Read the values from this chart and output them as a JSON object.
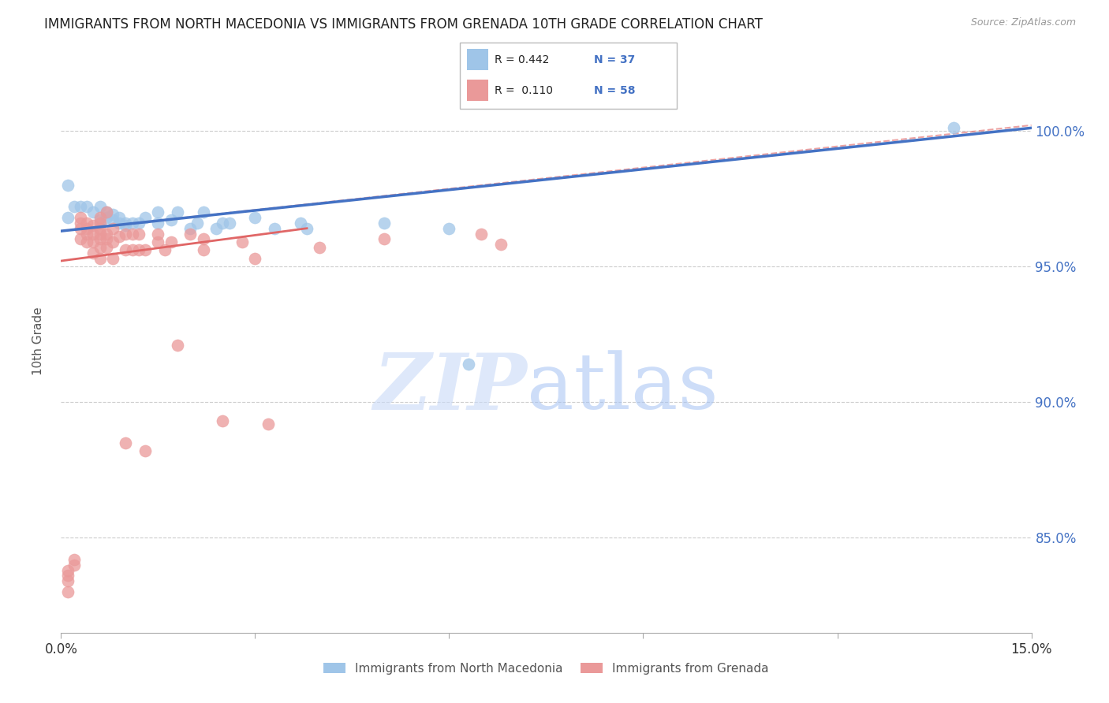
{
  "title": "IMMIGRANTS FROM NORTH MACEDONIA VS IMMIGRANTS FROM GRENADA 10TH GRADE CORRELATION CHART",
  "source": "Source: ZipAtlas.com",
  "ylabel": "10th Grade",
  "yaxis_labels": [
    "100.0%",
    "95.0%",
    "90.0%",
    "85.0%"
  ],
  "yaxis_values": [
    1.0,
    0.95,
    0.9,
    0.85
  ],
  "xmin": 0.0,
  "xmax": 0.15,
  "ymin": 0.815,
  "ymax": 1.03,
  "blue_color": "#9fc5e8",
  "pink_color": "#ea9999",
  "line_blue_color": "#4472c4",
  "line_pink_color": "#e06666",
  "dashed_color": "#e06666",
  "grid_color": "#cccccc",
  "blue_scatter_x": [
    0.001,
    0.002,
    0.001,
    0.003,
    0.004,
    0.005,
    0.006,
    0.006,
    0.007,
    0.007,
    0.008,
    0.008,
    0.009,
    0.009,
    0.01,
    0.01,
    0.011,
    0.012,
    0.013,
    0.015,
    0.015,
    0.017,
    0.018,
    0.02,
    0.021,
    0.022,
    0.024,
    0.025,
    0.026,
    0.03,
    0.033,
    0.037,
    0.038,
    0.05,
    0.06,
    0.063,
    0.138
  ],
  "blue_scatter_y": [
    0.98,
    0.972,
    0.968,
    0.972,
    0.972,
    0.97,
    0.972,
    0.967,
    0.97,
    0.968,
    0.969,
    0.967,
    0.966,
    0.968,
    0.966,
    0.965,
    0.966,
    0.966,
    0.968,
    0.966,
    0.97,
    0.967,
    0.97,
    0.964,
    0.966,
    0.97,
    0.964,
    0.966,
    0.966,
    0.968,
    0.964,
    0.966,
    0.964,
    0.966,
    0.964,
    0.914,
    1.001
  ],
  "pink_scatter_x": [
    0.001,
    0.001,
    0.001,
    0.001,
    0.002,
    0.002,
    0.003,
    0.003,
    0.003,
    0.003,
    0.004,
    0.004,
    0.004,
    0.004,
    0.005,
    0.005,
    0.005,
    0.005,
    0.006,
    0.006,
    0.006,
    0.006,
    0.006,
    0.006,
    0.006,
    0.007,
    0.007,
    0.007,
    0.007,
    0.008,
    0.008,
    0.008,
    0.009,
    0.01,
    0.01,
    0.011,
    0.011,
    0.012,
    0.012,
    0.013,
    0.015,
    0.015,
    0.016,
    0.017,
    0.018,
    0.02,
    0.022,
    0.022,
    0.025,
    0.028,
    0.03,
    0.032,
    0.04,
    0.05,
    0.065,
    0.068,
    0.01,
    0.013
  ],
  "pink_scatter_y": [
    0.83,
    0.834,
    0.836,
    0.838,
    0.84,
    0.842,
    0.96,
    0.964,
    0.966,
    0.968,
    0.959,
    0.962,
    0.964,
    0.966,
    0.955,
    0.959,
    0.962,
    0.965,
    0.953,
    0.957,
    0.96,
    0.962,
    0.964,
    0.966,
    0.968,
    0.957,
    0.96,
    0.962,
    0.97,
    0.953,
    0.959,
    0.964,
    0.961,
    0.956,
    0.962,
    0.956,
    0.962,
    0.956,
    0.962,
    0.956,
    0.959,
    0.962,
    0.956,
    0.959,
    0.921,
    0.962,
    0.956,
    0.96,
    0.893,
    0.959,
    0.953,
    0.892,
    0.957,
    0.96,
    0.962,
    0.958,
    0.885,
    0.882
  ],
  "blue_line_x": [
    0.0,
    0.15
  ],
  "blue_line_y": [
    0.963,
    1.001
  ],
  "pink_line_x": [
    0.0,
    0.038
  ],
  "pink_line_y": [
    0.952,
    0.964
  ],
  "dashed_line_x": [
    0.0,
    0.15
  ],
  "dashed_line_y": [
    0.963,
    1.002
  ],
  "legend_label1": "Immigrants from North Macedonia",
  "legend_label2": "Immigrants from Grenada"
}
